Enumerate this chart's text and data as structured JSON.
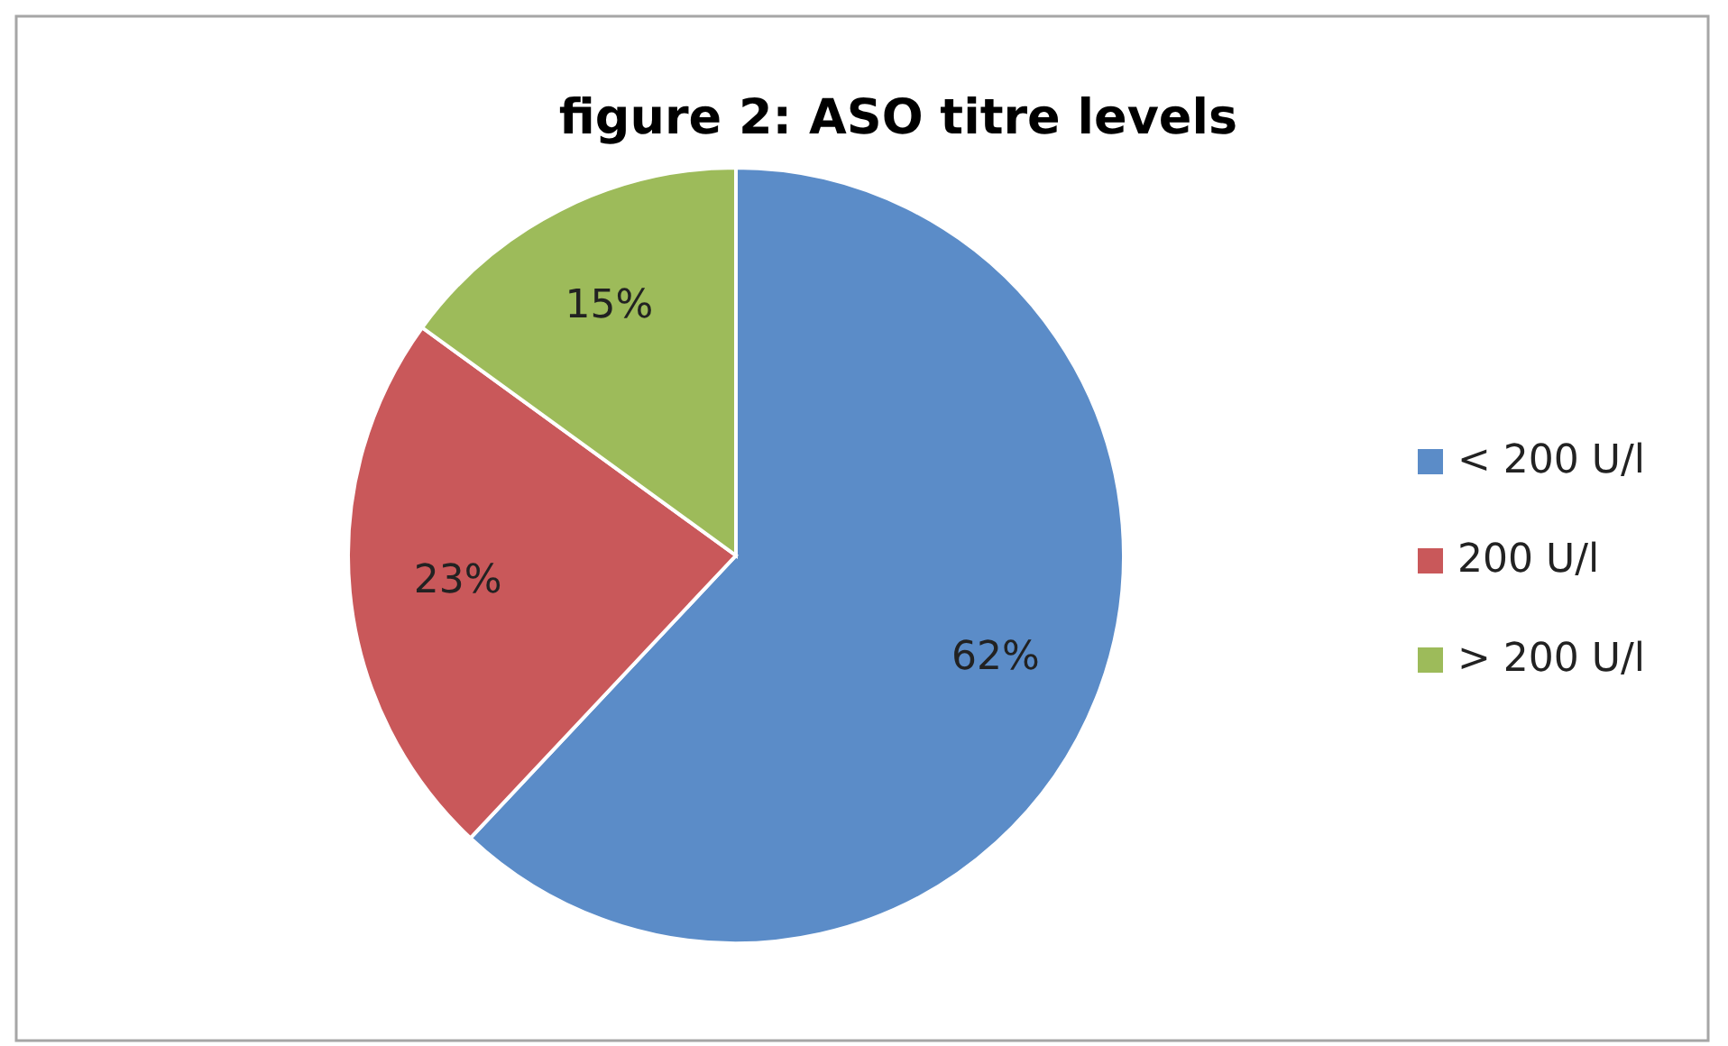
{
  "chart_data": {
    "type": "pie",
    "title": "figure 2: ASO titre levels",
    "categories": [
      "< 200 U/l",
      "200 U/l",
      "> 200 U/l"
    ],
    "values": [
      62,
      23,
      15
    ],
    "colors": [
      "#5b8cc8",
      "#c9585a",
      "#9dbb5a"
    ],
    "value_labels": [
      "62%",
      "23%",
      "15%"
    ],
    "legend": "right"
  }
}
